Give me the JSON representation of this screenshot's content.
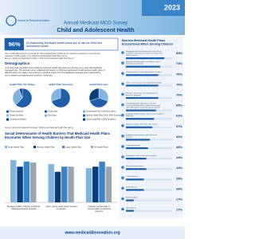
{
  "header": {
    "year": "2023",
    "org": "Institute for Medicaid Innovation",
    "survey": "Annual Medicaid MCO Survey",
    "title": "Child and Adolescent Health"
  },
  "highlight": {
    "stat": "96%",
    "text": "of responding Medicaid health plans are at risk for child and adolescent health"
  },
  "note": "Note: Health plans that are not at risk for child and adolescent health did not respond to questions in the child and adolescent health section of the 2023 Annual Medicaid Health Plan survey.",
  "note_source": "Source: Institute for Medicaid Innovation. \"2023 Annual Medicaid Health Plan Survey.\"",
  "demographics": {
    "heading": "Demographics",
    "text": "In its sixth year, the 2023 survey findings represent health plan data from almost every state with Medicaid managed care. The annual survey collected information on child and adolescent health across health plans of different sizes, tax status, and structure, providing insight into how Medicaid managed care organizations serve children and adolescents enrolled in Medicaid."
  },
  "pies": [
    {
      "title": "Health Plan Tax Status",
      "labels": [
        "Private Nonprofit",
        "Private For-Profit",
        "Government-Owned"
      ],
      "values": [
        62,
        33,
        5
      ],
      "colors": [
        "#1f5fa8",
        "#7fb4e0",
        "#0b3c7a"
      ]
    },
    {
      "title": "Health Plan Structure",
      "labels": [
        "Single-State",
        "Multi-State"
      ],
      "values": [
        70,
        30
      ],
      "colors": [
        "#1f5fa8",
        "#7fb4e0"
      ]
    },
    {
      "title": "Health Plan Size",
      "labels": [
        "Small Health Plan (<100K Enrollees)",
        "Medium Health Plan (100K–500K Enrollees)",
        "Large Health Plan (>500K Enrollees)"
      ],
      "values": [
        30,
        40,
        30
      ],
      "colors": [
        "#7fb4e0",
        "#1f5fa8",
        "#0b3c7a"
      ]
    }
  ],
  "pies_source": "Source: Institute for Medicaid Innovation. \"2023 Annual Medicaid Health Plan Survey.\"",
  "sdoh": {
    "title": "Social Determinants of Health Barriers That Medicaid Health Plans Encounter When Serving Children by Health Plan Size",
    "categories": [
      "Engaging health members to address social determinants of health",
      "Other, unmet social needs reported by families",
      "Families express lack of transportation to treatment programs"
    ],
    "series": [
      {
        "name": "Small Health Plan",
        "color": "#7fb4e0",
        "values": [
          83,
          75,
          67
        ]
      },
      {
        "name": "Medium Health Plan",
        "color": "#0b3c7a",
        "values": [
          70,
          60,
          70
        ]
      },
      {
        "name": "Large Health Plan",
        "color": "#3a84c9",
        "values": [
          80,
          70,
          80
        ]
      },
      {
        "name": "All Health Plans",
        "color": "#9aa5b1",
        "values": [
          78,
          70,
          70
        ]
      }
    ],
    "ylim": [
      0,
      100
    ]
  },
  "barriers": {
    "title": "Barriers Medicaid Health Plans Encountered When Serving Children",
    "labels": [
      "Identifying and coordinating with schools (e.g., establish or gain direct access to school-based health services)",
      "Engaging family members to address social determinants of health",
      "Limited number of specialty pediatric providers",
      "Other, unmet social needs reported by families",
      "Families express lack of transportation to treatment programs",
      "Coordinating with departments of child services/juvenile justice to effectively engage with child welfare or juvenile justice systems",
      "Engaging family members who are not enrolled in Medicaid",
      "Barriers related to the foster care system",
      "Inability to find needed health and social services",
      "Language barriers",
      "Immigration status of parents/caregivers",
      "Program fragmentation",
      "Cultural barriers",
      "Health literacy",
      "Federal policies",
      "State policies"
    ],
    "values": [
      83,
      74,
      70,
      70,
      70,
      65,
      61,
      57,
      52,
      48,
      44,
      44,
      39,
      39,
      17,
      17
    ],
    "value_labels": [
      "83%",
      "74%",
      "70%",
      "70%",
      "70%",
      "65%",
      "61%",
      "57%",
      "52%",
      "48%",
      "44%",
      "44%",
      "39%",
      "39%",
      "17%",
      "17%"
    ],
    "color": "#1f5fa8",
    "xlim": [
      0,
      100
    ]
  },
  "footer": {
    "url": "www.medicaidinnovation.org"
  }
}
